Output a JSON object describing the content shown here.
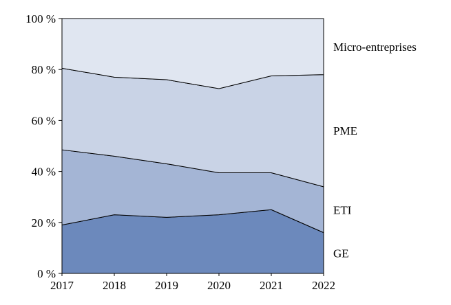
{
  "chart_data": {
    "type": "area",
    "stacked": true,
    "title": "",
    "xlabel": "",
    "ylabel": "",
    "x": [
      2017,
      2018,
      2019,
      2020,
      2021,
      2022
    ],
    "x_tick_labels": [
      "2017",
      "2018",
      "2019",
      "2020",
      "2021",
      "2022"
    ],
    "series": [
      {
        "name": "GE",
        "color": "#6c89bc",
        "values": [
          19.0,
          23.0,
          22.0,
          23.0,
          25.0,
          16.0
        ]
      },
      {
        "name": "ETI",
        "color": "#a4b5d5",
        "values": [
          29.5,
          23.0,
          21.0,
          16.5,
          14.5,
          18.0
        ]
      },
      {
        "name": "PME",
        "color": "#c9d3e6",
        "values": [
          32.0,
          31.0,
          33.0,
          33.0,
          38.0,
          44.0
        ]
      },
      {
        "name": "Micro-entreprises",
        "color": "#e0e6f1",
        "values": [
          19.5,
          23.0,
          24.0,
          27.5,
          22.5,
          22.0
        ]
      }
    ],
    "cumulative_boundaries": {
      "GE_top": [
        19.0,
        23.0,
        22.0,
        23.0,
        25.0,
        16.0
      ],
      "ETI_top": [
        48.5,
        46.0,
        43.0,
        39.5,
        39.5,
        34.0
      ],
      "PME_top": [
        80.5,
        77.0,
        76.0,
        72.5,
        77.5,
        78.0
      ],
      "Micro_top": [
        100,
        100,
        100,
        100,
        100,
        100
      ]
    },
    "ylim": [
      0,
      100
    ],
    "y_ticks": [
      0,
      20,
      40,
      60,
      80,
      100
    ],
    "y_tick_labels": [
      "0 %",
      "20 %",
      "40 %",
      "60 %",
      "80 %",
      "100 %"
    ],
    "legend_position": "right-inline-labels",
    "grid": false,
    "line_color": "#000000",
    "background": "#ffffff"
  }
}
